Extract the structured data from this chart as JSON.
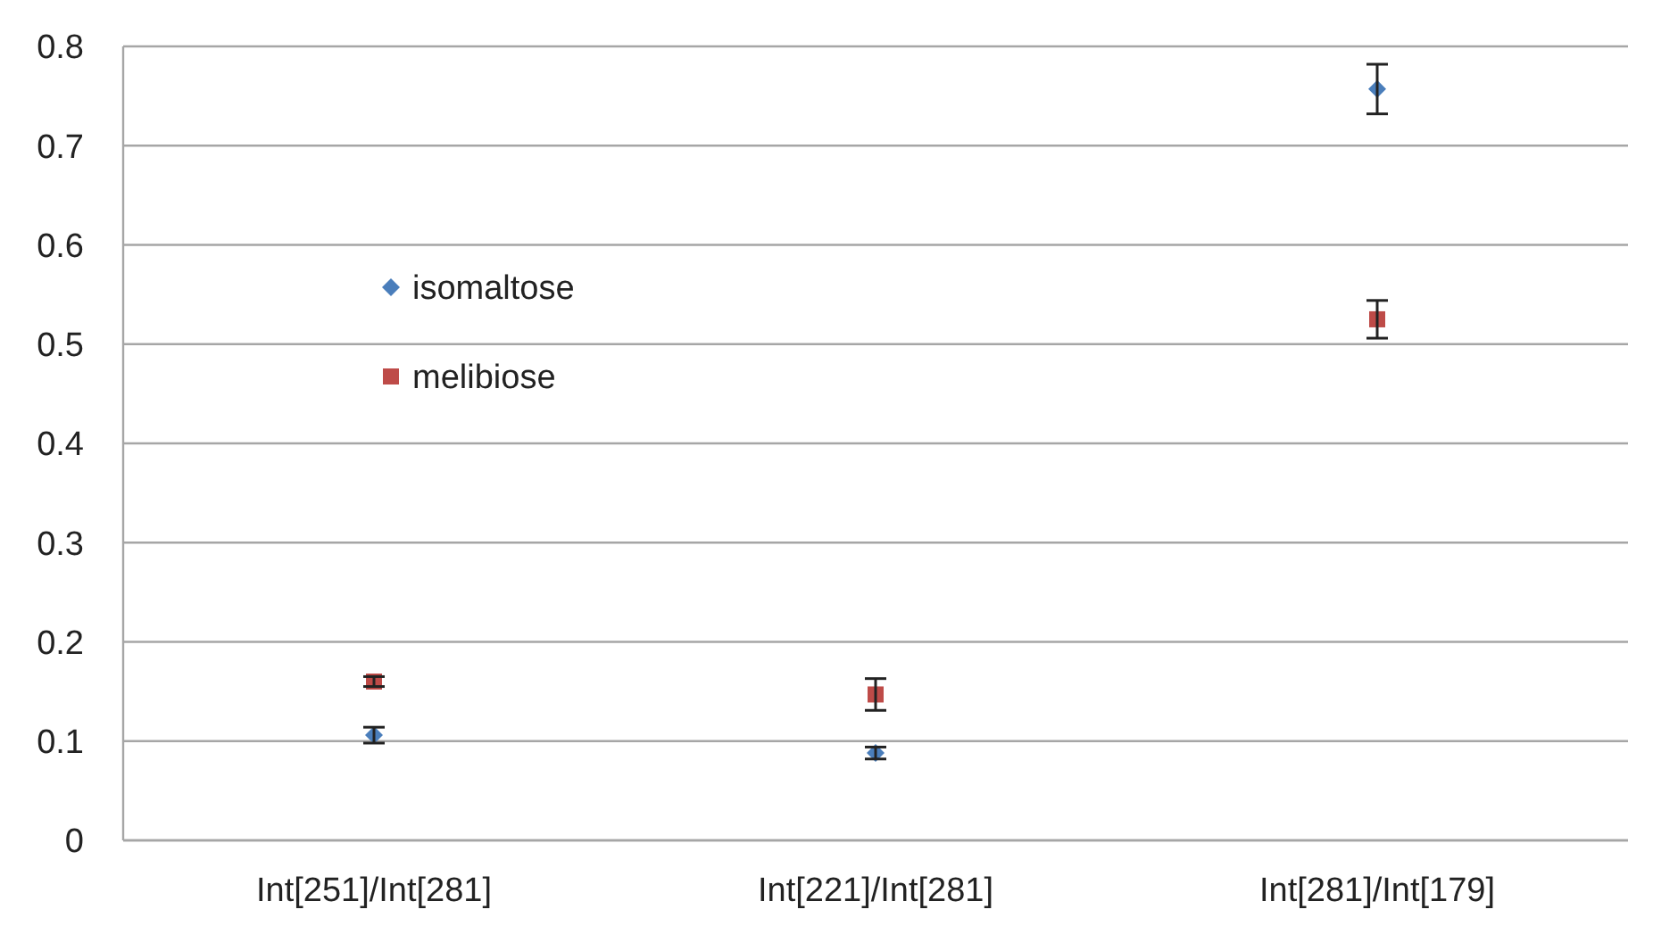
{
  "chart_data": {
    "type": "scatter",
    "categories": [
      "Int[251]/Int[281]",
      "Int[221]/Int[281]",
      "Int[281]/Int[179]"
    ],
    "ylim": [
      0,
      0.8
    ],
    "yticks": [
      0,
      0.1,
      0.2,
      0.3,
      0.4,
      0.5,
      0.6,
      0.7,
      0.8
    ],
    "grid": "y",
    "legend": "top left",
    "series": [
      {
        "name": "isomaltose",
        "color": "#4a7ebb",
        "marker": "diamond",
        "values": [
          0.106,
          0.088,
          0.757
        ],
        "errors": [
          0.008,
          0.006,
          0.025
        ]
      },
      {
        "name": "melibiose",
        "color": "#be4b48",
        "marker": "square",
        "values": [
          0.16,
          0.147,
          0.525
        ],
        "errors": [
          0.005,
          0.016,
          0.019
        ]
      }
    ]
  }
}
